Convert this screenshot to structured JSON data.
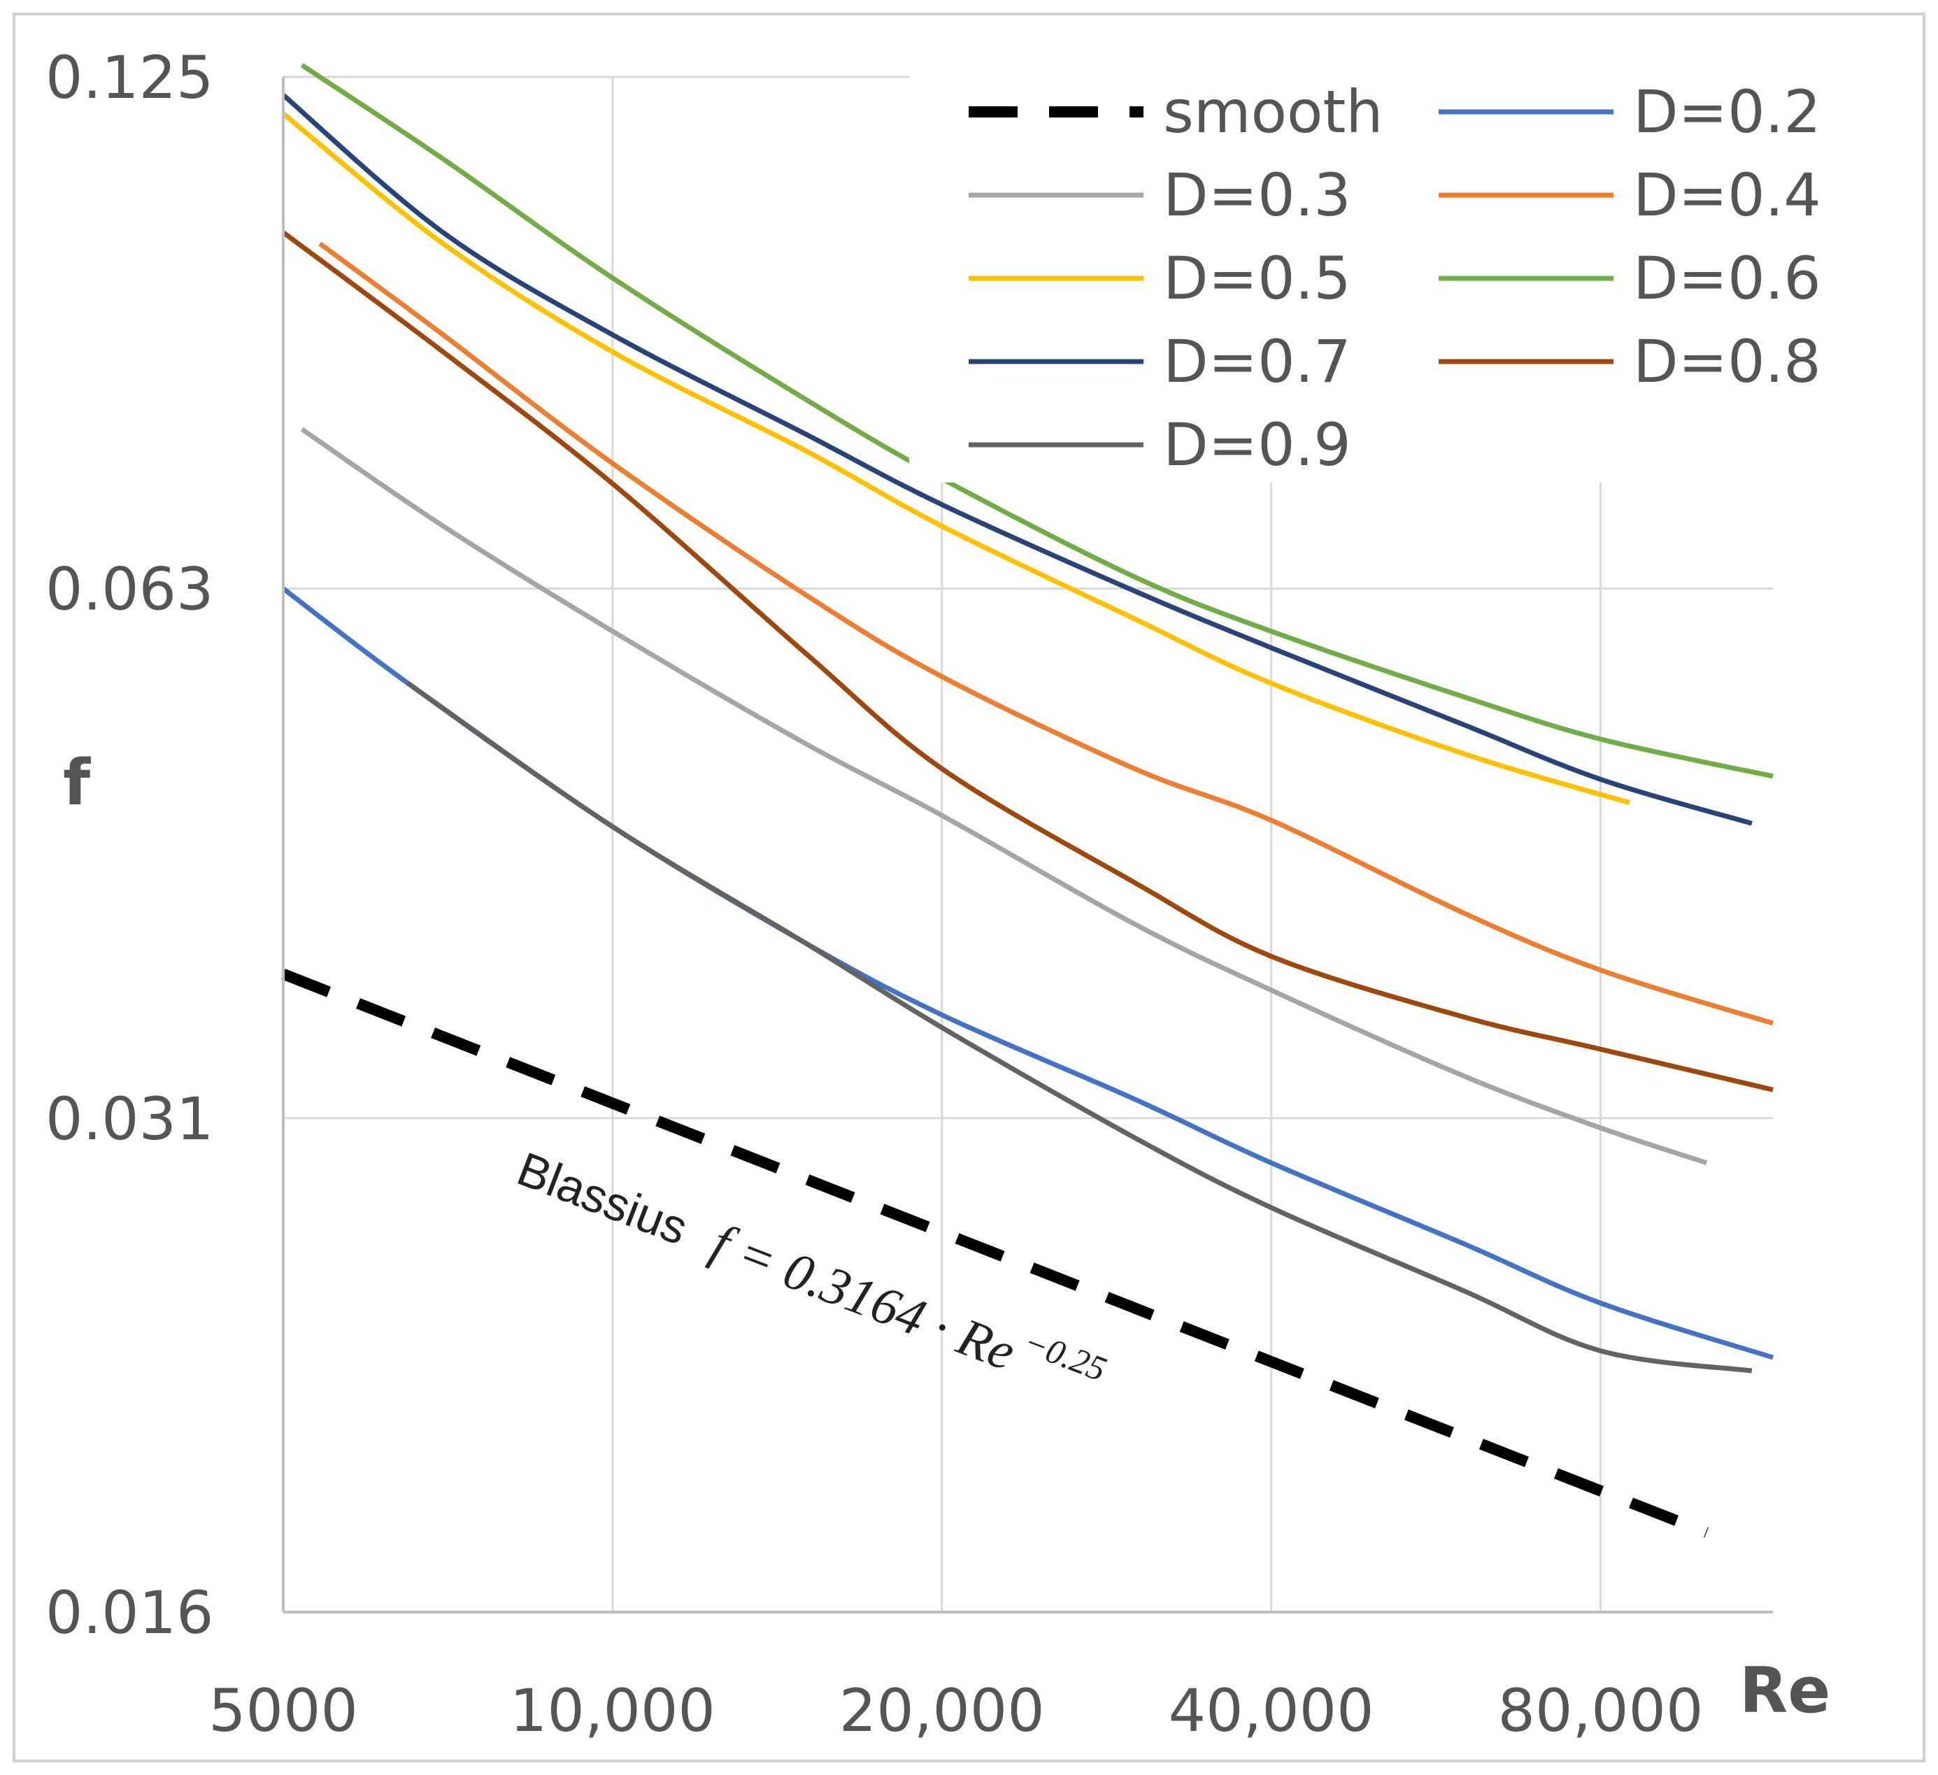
{
  "chart_data": {
    "type": "line",
    "xscale": "log",
    "yscale": "log",
    "xlabel": "Re",
    "ylabel": "f",
    "xlim": [
      5000,
      115000
    ],
    "ylim": [
      0.016,
      0.125
    ],
    "xticks": [
      5000,
      10000,
      20000,
      40000,
      80000
    ],
    "xtick_labels": [
      "5000",
      "10,000",
      "20,000",
      "40,000",
      "80,000"
    ],
    "yticks": [
      0.016,
      0.031,
      0.063,
      0.125
    ],
    "ytick_labels": [
      "0.016",
      "0.031",
      "0.063",
      "0.125"
    ],
    "grid": true,
    "legend_position": "top-right",
    "annotation": {
      "name": "Blassius",
      "equation": "f = 0.3164 · Re",
      "exponent": "−0.25"
    },
    "series": [
      {
        "name": "smooth",
        "color": "#000000",
        "dashed": true,
        "x": [
          5000,
          10000,
          20000,
          40000,
          80000,
          100000
        ],
        "y": [
          0.0376,
          0.0316,
          0.0266,
          0.0224,
          0.0188,
          0.0178
        ]
      },
      {
        "name": "D=0.2",
        "color": "#4472C4",
        "dashed": false,
        "x": [
          5000,
          6500,
          10000,
          15000,
          20000,
          30000,
          40000,
          60000,
          80000,
          115000
        ],
        "y": [
          0.063,
          0.0555,
          0.0458,
          0.0392,
          0.0356,
          0.0318,
          0.0292,
          0.0262,
          0.0242,
          0.0225
        ]
      },
      {
        "name": "D=0.3",
        "color": "#A5A5A5",
        "dashed": false,
        "x": [
          5200,
          7000,
          10000,
          15000,
          20000,
          30000,
          40000,
          60000,
          80000,
          100000
        ],
        "y": [
          0.078,
          0.0685,
          0.0595,
          0.0512,
          0.0465,
          0.0402,
          0.0368,
          0.0328,
          0.0306,
          0.0292
        ]
      },
      {
        "name": "D=0.4",
        "color": "#ED7D31",
        "dashed": false,
        "x": [
          5400,
          7000,
          10000,
          15000,
          20000,
          30000,
          40000,
          60000,
          80000,
          115000
        ],
        "y": [
          0.1,
          0.0885,
          0.0745,
          0.0625,
          0.056,
          0.0495,
          0.0462,
          0.0408,
          0.0378,
          0.0352
        ]
      },
      {
        "name": "D=0.5",
        "color": "#FFC000",
        "dashed": false,
        "x": [
          5000,
          7000,
          10000,
          15000,
          20000,
          30000,
          40000,
          60000,
          85000
        ],
        "y": [
          0.119,
          0.1,
          0.0865,
          0.0758,
          0.0685,
          0.0605,
          0.0555,
          0.0505,
          0.0473
        ]
      },
      {
        "name": "D=0.6",
        "color": "#70AD47",
        "dashed": false,
        "x": [
          5200,
          7000,
          10000,
          15000,
          20000,
          30000,
          40000,
          60000,
          80000,
          115000
        ],
        "y": [
          0.127,
          0.112,
          0.0955,
          0.0812,
          0.073,
          0.064,
          0.0595,
          0.0545,
          0.0515,
          0.049
        ]
      },
      {
        "name": "D=0.7",
        "color": "#264478",
        "dashed": false,
        "x": [
          5000,
          7000,
          10000,
          15000,
          20000,
          30000,
          40000,
          60000,
          80000,
          110000
        ],
        "y": [
          0.122,
          0.1015,
          0.0885,
          0.0775,
          0.0705,
          0.0628,
          0.0582,
          0.0525,
          0.0488,
          0.046
        ]
      },
      {
        "name": "D=0.8",
        "color": "#9E480E",
        "dashed": false,
        "x": [
          5000,
          7000,
          10000,
          15000,
          20000,
          30000,
          40000,
          60000,
          80000,
          115000
        ],
        "y": [
          0.1015,
          0.0865,
          0.0725,
          0.0578,
          0.0495,
          0.0425,
          0.0385,
          0.0355,
          0.034,
          0.0322
        ]
      },
      {
        "name": "D=0.9",
        "color": "#636363",
        "dashed": false,
        "x": [
          6500,
          10000,
          15000,
          20000,
          30000,
          40000,
          60000,
          80000,
          110000
        ],
        "y": [
          0.0555,
          0.0458,
          0.0392,
          0.035,
          0.0302,
          0.0275,
          0.0246,
          0.0227,
          0.0221
        ]
      }
    ]
  }
}
